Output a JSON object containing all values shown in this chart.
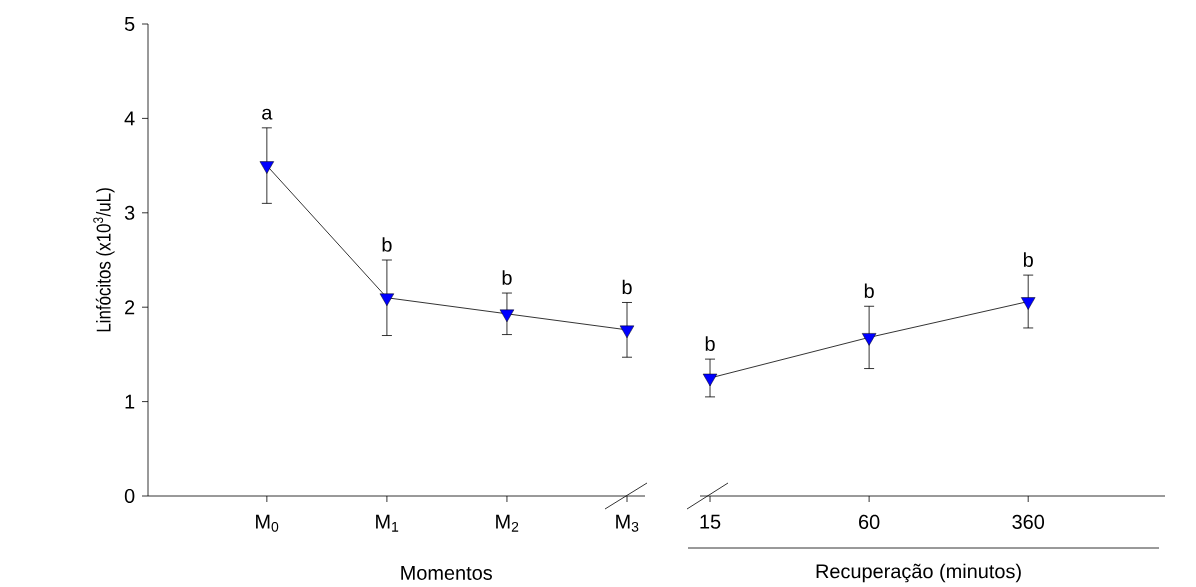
{
  "chart_data": [
    {
      "type": "line",
      "categories": [
        "M$_{0}$",
        "M$_{1}$",
        "M$_{2}$",
        "M$_{3}$"
      ],
      "values": [
        3.5,
        2.1,
        1.93,
        1.76
      ],
      "errors": [
        0.4,
        0.4,
        0.22,
        0.29
      ],
      "color": "#0000ff",
      "marker": "triangle",
      "ylim": [
        0,
        5
      ],
      "yticks": [
        0,
        1,
        2,
        3,
        4,
        5
      ],
      "ylabel": "Linfócitos (x10$^{3}$/uL)",
      "xlabel": "Momentos",
      "annotations": [
        "a",
        "b",
        "b",
        "b"
      ]
    },
    {
      "type": "line",
      "categories": [
        "15",
        "60",
        "360"
      ],
      "values": [
        1.25,
        1.68,
        2.06
      ],
      "errors": [
        0.2,
        0.33,
        0.28
      ],
      "color": "#0000ff",
      "marker": "triangle",
      "ylim": [
        0,
        5
      ],
      "tick_labels": "x",
      "xlabel": "Recuperação (minutos)",
      "annotations": [
        "b",
        "b",
        "b"
      ]
    }
  ]
}
